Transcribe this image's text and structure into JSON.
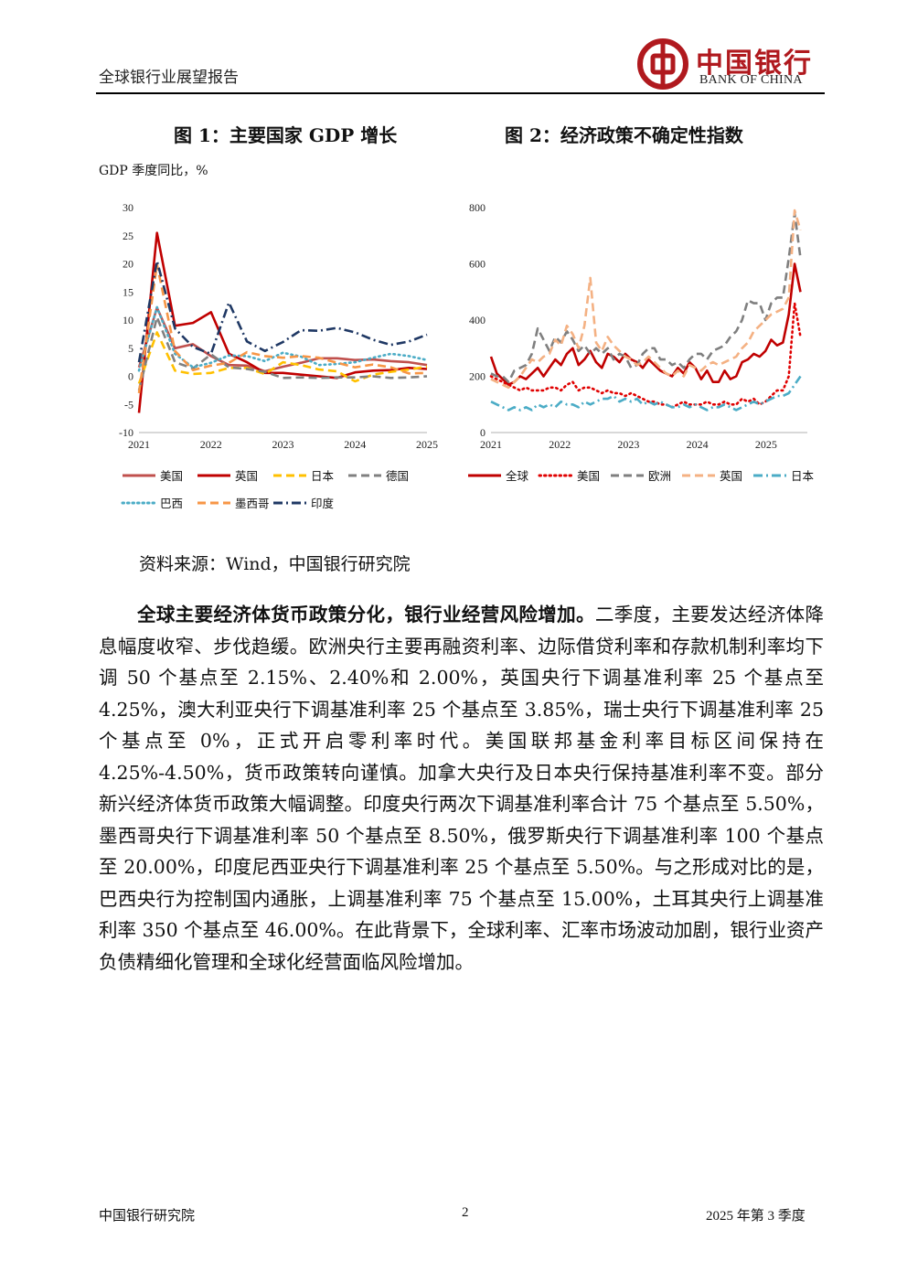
{
  "header": {
    "report_title": "全球银行业展望报告",
    "logo_cn": "中国银行",
    "logo_en": "BANK OF CHINA"
  },
  "figure1": {
    "title": "图 1：主要国家 GDP 增长",
    "subtitle": "GDP 季度同比，%",
    "chart_data": {
      "type": "line",
      "title": "图 1：主要国家 GDP 增长",
      "ylabel": "GDP 季度同比，%",
      "ylim": [
        -10,
        30
      ],
      "yticks": [
        -10,
        -5,
        0,
        5,
        10,
        15,
        20,
        25,
        30
      ],
      "xticks": [
        "2021",
        "2022",
        "2023",
        "2024",
        "2025"
      ],
      "x": [
        2021.0,
        2021.25,
        2021.5,
        2021.75,
        2022.0,
        2022.25,
        2022.5,
        2022.75,
        2023.0,
        2023.25,
        2023.5,
        2023.75,
        2024.0,
        2024.25,
        2024.5,
        2024.75,
        2025.0
      ],
      "legend_position": "bottom",
      "series": [
        {
          "name": "美国",
          "color": "#c0504d",
          "style": "solid",
          "values": [
            1.6,
            12.2,
            5.0,
            5.7,
            3.6,
            2.0,
            1.9,
            0.9,
            1.7,
            2.4,
            3.2,
            3.2,
            2.9,
            3.0,
            2.7,
            2.5,
            2.0
          ]
        },
        {
          "name": "英国",
          "color": "#c00000",
          "style": "solid",
          "values": [
            -6.5,
            25.5,
            9.0,
            9.5,
            11.4,
            4.0,
            2.5,
            0.6,
            0.6,
            0.3,
            0.0,
            -0.3,
            0.7,
            1.0,
            1.1,
            1.5,
            1.3
          ]
        },
        {
          "name": "日本",
          "color": "#ffc000",
          "style": "dash",
          "values": [
            -1.3,
            7.8,
            1.0,
            0.4,
            0.6,
            1.5,
            1.5,
            0.4,
            2.5,
            2.0,
            1.2,
            0.9,
            -0.9,
            0.3,
            0.8,
            1.2,
            1.7
          ]
        },
        {
          "name": "德国",
          "color": "#808080",
          "style": "dash",
          "values": [
            -2.5,
            10.5,
            2.5,
            1.4,
            3.9,
            1.6,
            1.3,
            0.8,
            -0.3,
            -0.2,
            -0.3,
            -0.2,
            -0.2,
            0.0,
            -0.3,
            -0.2,
            0.0
          ]
        },
        {
          "name": "巴西",
          "color": "#4bacc6",
          "style": "dot",
          "values": [
            1.0,
            12.3,
            4.0,
            1.6,
            2.4,
            3.7,
            3.6,
            2.7,
            4.2,
            3.5,
            2.0,
            2.2,
            2.5,
            3.3,
            4.0,
            3.6,
            2.9
          ]
        },
        {
          "name": "墨西哥",
          "color": "#f79646",
          "style": "dash",
          "values": [
            -3.0,
            19.9,
            4.5,
            1.1,
            1.9,
            2.4,
            4.3,
            3.6,
            3.3,
            3.6,
            3.3,
            2.4,
            1.6,
            2.1,
            1.6,
            0.5,
            0.6
          ]
        },
        {
          "name": "印度",
          "color": "#1f3864",
          "style": "dashdot",
          "values": [
            2.5,
            20.5,
            8.5,
            5.2,
            4.0,
            13.1,
            6.2,
            4.5,
            6.1,
            8.2,
            8.1,
            8.6,
            7.8,
            6.5,
            5.6,
            6.2,
            7.4
          ]
        }
      ]
    }
  },
  "figure2": {
    "title": "图 2：经济政策不确定性指数",
    "chart_data": {
      "type": "line",
      "title": "图 2：经济政策不确定性指数",
      "ylim": [
        0,
        800
      ],
      "yticks": [
        0,
        200,
        400,
        600,
        800
      ],
      "xticks": [
        "2021",
        "2022",
        "2023",
        "2024",
        "2025"
      ],
      "x_start": 2021.0,
      "x_end": 2025.5,
      "x_step": 0.0833,
      "legend_position": "bottom",
      "series": [
        {
          "name": "全球",
          "color": "#c00000",
          "style": "solid",
          "values": [
            270,
            210,
            190,
            170,
            180,
            200,
            190,
            210,
            230,
            200,
            230,
            260,
            240,
            280,
            300,
            240,
            260,
            290,
            250,
            230,
            280,
            270,
            250,
            280,
            260,
            250,
            230,
            260,
            240,
            220,
            210,
            200,
            230,
            210,
            250,
            230,
            190,
            220,
            180,
            180,
            220,
            190,
            200,
            250,
            260,
            280,
            270,
            290,
            330,
            310,
            320,
            420,
            600,
            500
          ]
        },
        {
          "name": "美国",
          "color": "#e00000",
          "style": "dot",
          "values": [
            200,
            190,
            180,
            170,
            160,
            150,
            160,
            150,
            150,
            150,
            160,
            160,
            150,
            170,
            180,
            150,
            160,
            160,
            150,
            140,
            150,
            140,
            140,
            130,
            140,
            130,
            120,
            110,
            110,
            100,
            100,
            90,
            100,
            110,
            100,
            100,
            100,
            110,
            100,
            100,
            110,
            100,
            100,
            120,
            110,
            120,
            100,
            110,
            130,
            150,
            150,
            200,
            460,
            340
          ]
        },
        {
          "name": "欧洲",
          "color": "#7f7f7f",
          "style": "dash",
          "values": [
            210,
            200,
            200,
            180,
            220,
            230,
            240,
            280,
            370,
            330,
            290,
            340,
            320,
            360,
            330,
            290,
            310,
            280,
            300,
            280,
            300,
            260,
            280,
            270,
            230,
            240,
            280,
            300,
            300,
            260,
            260,
            240,
            250,
            230,
            260,
            280,
            280,
            260,
            290,
            300,
            310,
            340,
            360,
            400,
            470,
            460,
            460,
            400,
            460,
            480,
            480,
            620,
            780,
            620
          ]
        },
        {
          "name": "英国",
          "color": "#f4b183",
          "style": "dash",
          "values": [
            190,
            180,
            170,
            160,
            180,
            200,
            230,
            260,
            250,
            270,
            280,
            330,
            310,
            380,
            350,
            300,
            380,
            550,
            320,
            290,
            340,
            310,
            290,
            270,
            260,
            240,
            250,
            270,
            250,
            230,
            210,
            200,
            220,
            200,
            240,
            230,
            220,
            240,
            250,
            240,
            250,
            260,
            270,
            300,
            320,
            360,
            380,
            400,
            420,
            430,
            440,
            480,
            790,
            720
          ]
        },
        {
          "name": "日本",
          "color": "#4bacc6",
          "style": "dashdot",
          "values": [
            110,
            100,
            90,
            80,
            90,
            80,
            90,
            80,
            100,
            90,
            100,
            90,
            110,
            100,
            100,
            90,
            110,
            100,
            110,
            120,
            120,
            130,
            110,
            120,
            110,
            120,
            100,
            110,
            100,
            110,
            100,
            90,
            90,
            100,
            90,
            100,
            90,
            80,
            90,
            90,
            100,
            90,
            80,
            90,
            100,
            110,
            100,
            110,
            120,
            130,
            130,
            140,
            170,
            200
          ]
        }
      ]
    }
  },
  "source": "资料来源：Wind，中国银行研究院",
  "paragraph": {
    "bold_lead": "全球主要经济体货币政策分化，银行业经营风险增加。",
    "body": "二季度，主要发达经济体降息幅度收窄、步伐趋缓。欧洲央行主要再融资利率、边际借贷利率和存款机制利率均下调 50 个基点至 2.15%、2.40%和 2.00%，英国央行下调基准利率 25 个基点至 4.25%，澳大利亚央行下调基准利率 25 个基点至 3.85%，瑞士央行下调基准利率 25 个基点至 0%，正式开启零利率时代。美国联邦基金利率目标区间保持在 4.25%-4.50%，货币政策转向谨慎。加拿大央行及日本央行保持基准利率不变。部分新兴经济体货币政策大幅调整。印度央行两次下调基准利率合计 75 个基点至 5.50%，墨西哥央行下调基准利率 50 个基点至 8.50%，俄罗斯央行下调基准利率 100 个基点至 20.00%，印度尼西亚央行下调基准利率 25 个基点至 5.50%。与之形成对比的是，巴西央行为控制国内通胀，上调基准利率 75 个基点至 15.00%，土耳其央行上调基准利率 350 个基点至 46.00%。在此背景下，全球利率、汇率市场波动加剧，银行业资产负债精细化管理和全球化经营面临风险增加。"
  },
  "footer": {
    "left": "中国银行研究院",
    "page": "2",
    "right": "2025 年第 3 季度"
  }
}
